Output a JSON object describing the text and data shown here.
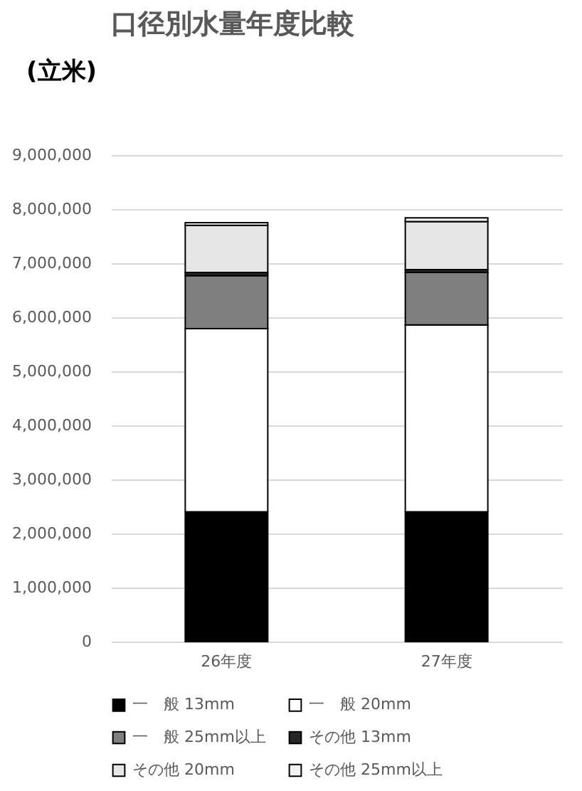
{
  "chart_data": {
    "type": "bar",
    "title": "口径別水量年度比較",
    "ylabel": "(立米)",
    "categories": [
      "26年度",
      "27年度"
    ],
    "stacked": true,
    "series": [
      {
        "name": "一　般 13mm",
        "color": "#000000",
        "values": [
          2400000,
          2400000
        ]
      },
      {
        "name": "一　般 20mm",
        "color": "#ffffff",
        "values": [
          3390000,
          3460000
        ]
      },
      {
        "name": "一　般 25mm以上",
        "color": "#7f7f7f",
        "values": [
          980000,
          970000
        ]
      },
      {
        "name": "その他 13mm",
        "color": "#262626",
        "values": [
          60000,
          50000
        ]
      },
      {
        "name": "その他 20mm",
        "color": "#e6e6e6",
        "values": [
          870000,
          890000
        ]
      },
      {
        "name": "その他 25mm以上",
        "color": "#f2f2f2",
        "values": [
          50000,
          70000
        ]
      }
    ],
    "ylim": [
      0,
      9000000
    ],
    "yticks": [
      0,
      {
        "value": 1000000,
        "label": "1,000,000"
      },
      {
        "value": 2000000,
        "label": "2,000,000"
      },
      {
        "value": 3000000,
        "label": "3,000,000"
      },
      {
        "value": 4000000,
        "label": "4,000,000"
      },
      {
        "value": 5000000,
        "label": "5,000,000"
      },
      {
        "value": 6000000,
        "label": "6,000,000"
      },
      {
        "value": 7000000,
        "label": "7,000,000"
      },
      {
        "value": 8000000,
        "label": "8,000,000"
      },
      {
        "value": 9000000,
        "label": "9,000,000"
      }
    ],
    "grid": "y",
    "legend": "bottom"
  }
}
